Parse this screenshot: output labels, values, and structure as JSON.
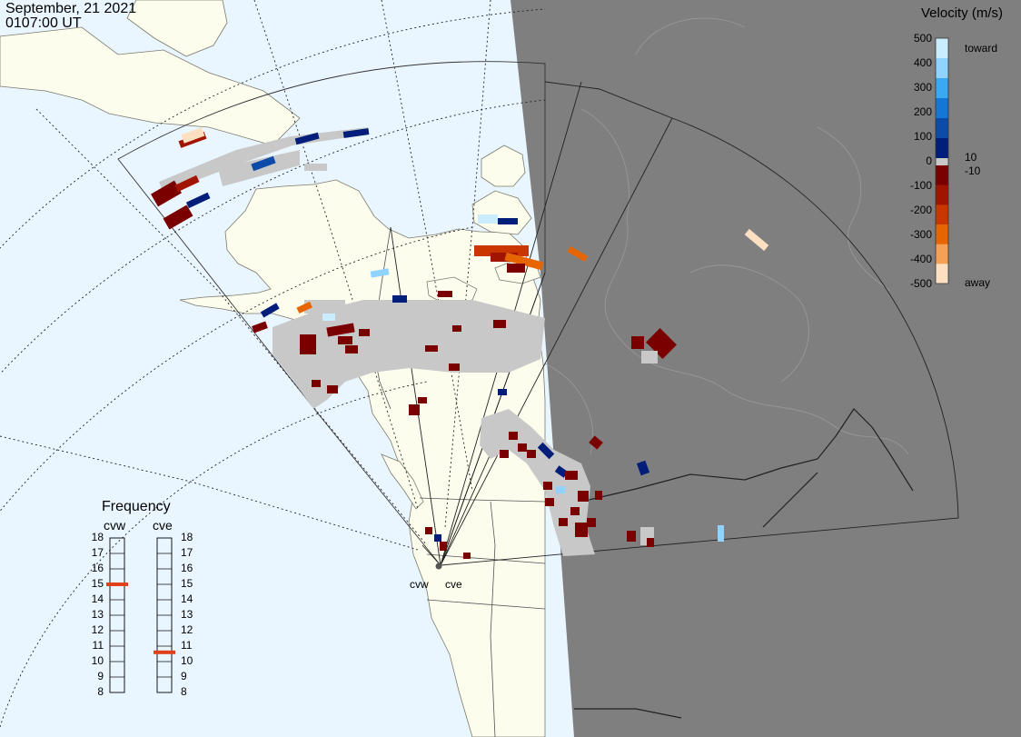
{
  "header": {
    "date": "September, 21 2021",
    "time": "0107:00 UT"
  },
  "colors": {
    "ocean": "#eaf6ff",
    "land": "#fdfdee",
    "night": "#7f7f7f",
    "ground_scatter": "#c8c8c8"
  },
  "velocity_legend": {
    "title": "Velocity (m/s)",
    "labels": [
      "500",
      "400",
      "300",
      "200",
      "100",
      "0",
      "-100",
      "-200",
      "-300",
      "-400",
      "-500"
    ],
    "label_10": "10",
    "label_minus10": "-10",
    "toward": "toward",
    "away": "away",
    "toward_colors": [
      "#c9ecff",
      "#91d3ff",
      "#3aa9f1",
      "#1476d6",
      "#0c4ba8",
      "#001e7a"
    ],
    "away_colors": [
      "#7a0000",
      "#a11500",
      "#c93600",
      "#e76500",
      "#f4a155",
      "#fde0c2"
    ]
  },
  "frequency": {
    "title": "Frequency",
    "radars": [
      {
        "name": "cvw",
        "value": 15
      },
      {
        "name": "cve",
        "value": 10.6
      }
    ],
    "ticks": [
      "18",
      "17",
      "16",
      "15",
      "14",
      "13",
      "12",
      "11",
      "10",
      "9",
      "8"
    ],
    "marker_color": "#e0401a"
  },
  "sites": [
    {
      "name": "cvw"
    },
    {
      "name": "cve"
    }
  ]
}
